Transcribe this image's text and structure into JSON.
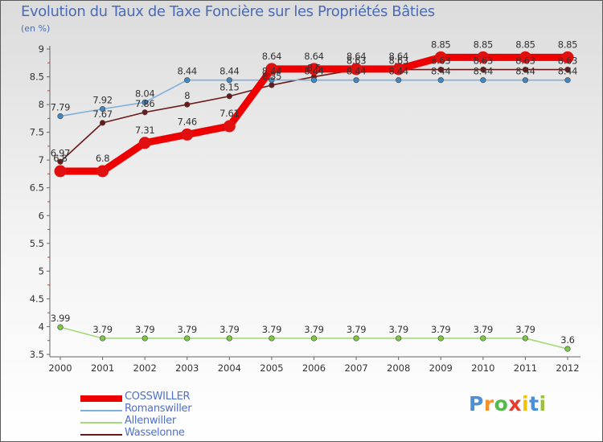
{
  "title": "Evolution du Taux de Taxe Foncière sur les Propriétés Bâties",
  "unit_label": "(en %)",
  "logo": {
    "text": "Proxiti",
    "letters": [
      "P",
      "r",
      "o",
      "x",
      "i",
      "t",
      "i"
    ],
    "colors": [
      "#4b8fd6",
      "#f39325",
      "#57b94a",
      "#e63b2e",
      "#f2c200",
      "#4b8fd6",
      "#9bc23c"
    ]
  },
  "chart_data": {
    "type": "line",
    "title": "Evolution du Taux de Taxe Foncière sur les Propriétés Bâties",
    "ylabel": "(en %)",
    "xlabel": "",
    "ylim": [
      3.5,
      9
    ],
    "yticks": [
      "3.5",
      "4",
      "4.5",
      "5",
      "5.5",
      "6",
      "6.5",
      "7",
      "7.5",
      "8",
      "8.5",
      "9"
    ],
    "categories": [
      "2000",
      "2001",
      "2002",
      "2003",
      "2004",
      "2005",
      "2006",
      "2007",
      "2008",
      "2009",
      "2010",
      "2011",
      "2012"
    ],
    "grid": false,
    "legend_position": "bottom-left",
    "series": [
      {
        "name": "Wasselonne",
        "color": "#6b1a1a",
        "line_color": "#6b1a1a",
        "emphasis": false,
        "values": [
          6.97,
          7.67,
          7.86,
          8,
          8.15,
          8.35,
          8.5,
          8.63,
          8.63,
          8.63,
          8.63,
          8.63,
          8.63
        ],
        "labels": [
          "6.97",
          "7.67",
          "7.86",
          "8",
          "8.15",
          "8.35",
          "8.5",
          "8.63",
          "8.63",
          "8.63",
          "8.63",
          "8.63",
          "8.63"
        ]
      },
      {
        "name": "Allenwiller",
        "color": "#7dc843",
        "line_color": "#a5d97a",
        "emphasis": false,
        "values": [
          3.99,
          3.79,
          3.79,
          3.79,
          3.79,
          3.79,
          3.79,
          3.79,
          3.79,
          3.79,
          3.79,
          3.79,
          3.6
        ],
        "labels": [
          "3.99",
          "3.79",
          "3.79",
          "3.79",
          "3.79",
          "3.79",
          "3.79",
          "3.79",
          "3.79",
          "3.79",
          "3.79",
          "3.79",
          "3.6"
        ]
      },
      {
        "name": "Romanswiller",
        "color": "#3f88c5",
        "line_color": "#7fb0d9",
        "emphasis": false,
        "values": [
          7.79,
          7.92,
          8.04,
          8.44,
          8.44,
          8.44,
          8.44,
          8.44,
          8.44,
          8.44,
          8.44,
          8.44,
          8.44
        ],
        "labels": [
          "7.79",
          "7.92",
          "8.04",
          "8.44",
          "8.44",
          "8.44",
          "8.44",
          "8.44",
          "8.44",
          "8.44",
          "8.44",
          "8.44",
          "8.44"
        ]
      },
      {
        "name": "COSSWILLER",
        "color": "#e01010",
        "line_color": "#ee0000",
        "emphasis": true,
        "values": [
          6.8,
          6.8,
          7.31,
          7.46,
          7.61,
          8.64,
          8.64,
          8.64,
          8.64,
          8.85,
          8.85,
          8.85,
          8.85
        ],
        "labels": [
          "6.8",
          "6.8",
          "7.31",
          "7.46",
          "7.61",
          "8.64",
          "8.64",
          "8.64",
          "8.64",
          "8.85",
          "8.85",
          "8.85",
          "8.85"
        ]
      }
    ],
    "legend_order": [
      "COSSWILLER",
      "Romanswiller",
      "Allenwiller",
      "Wasselonne"
    ]
  }
}
